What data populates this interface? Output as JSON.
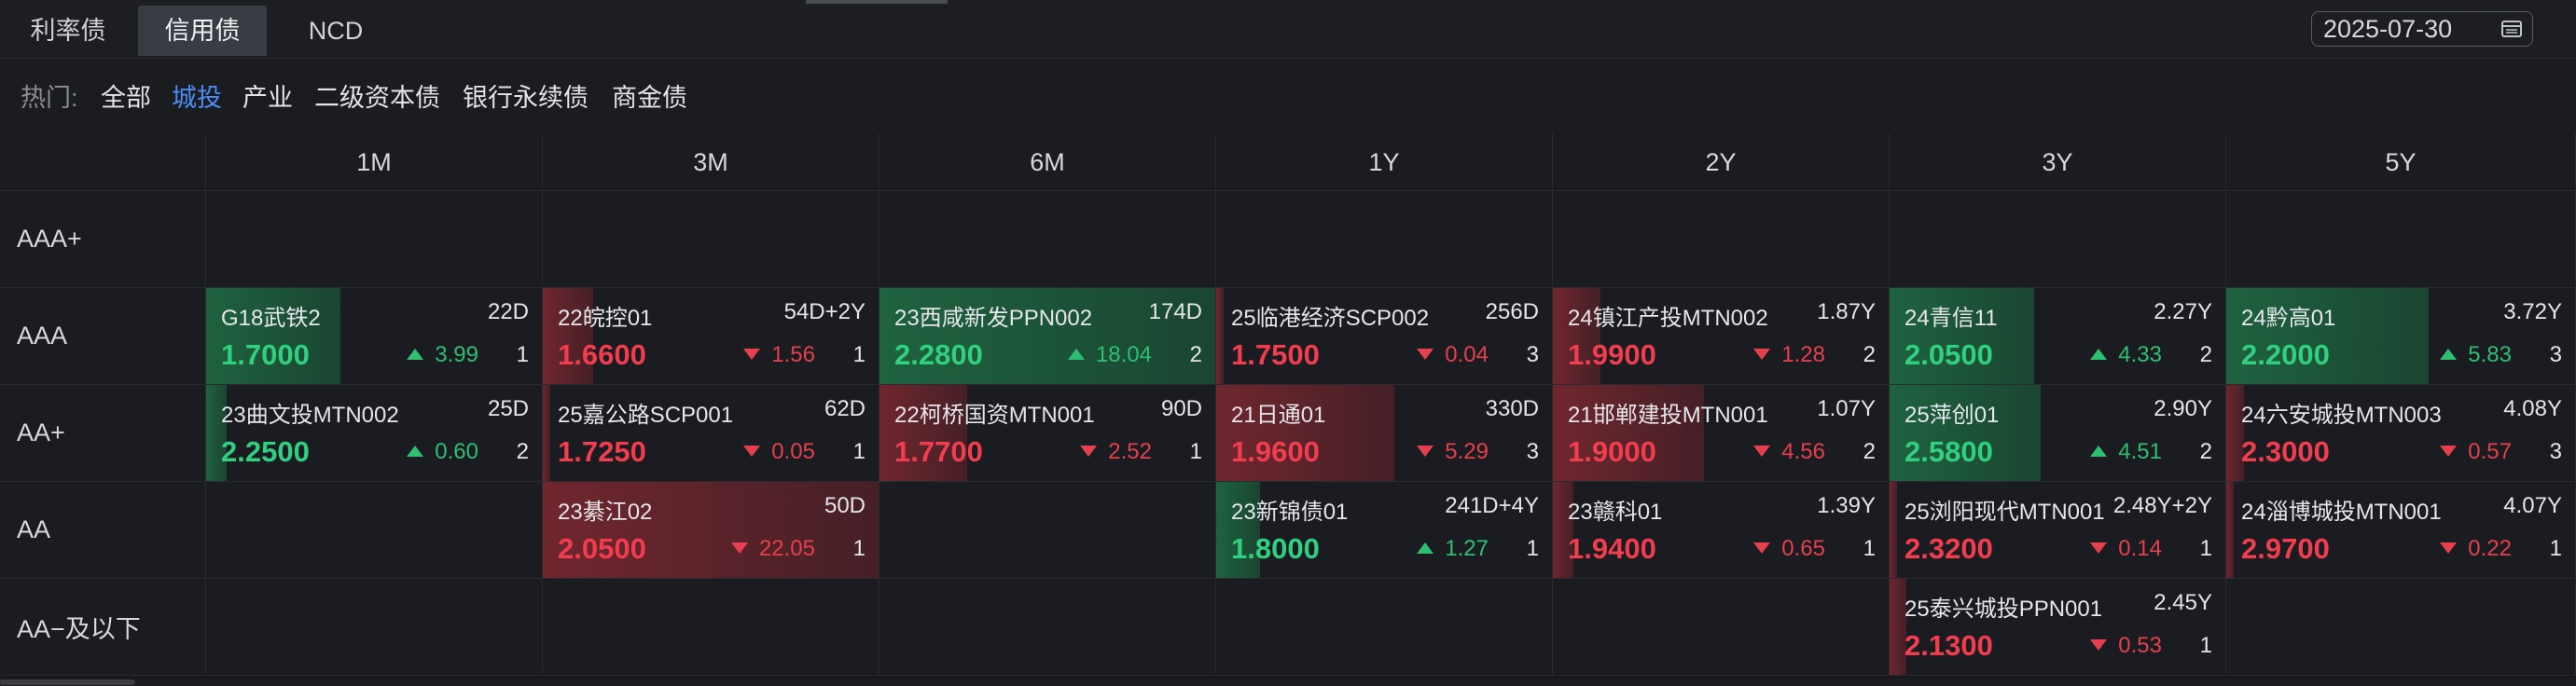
{
  "tabs": [
    {
      "label": "利率债"
    },
    {
      "label": "信用债"
    },
    {
      "label": "NCD"
    }
  ],
  "date": "2025-07-30",
  "hot": {
    "label": "热门:",
    "items": [
      "全部",
      "城投",
      "产业",
      "二级资本债",
      "银行永续债",
      "商金债"
    ],
    "active_index": 1
  },
  "columns": [
    "1M",
    "3M",
    "6M",
    "1Y",
    "2Y",
    "3Y",
    "5Y"
  ],
  "rows": [
    "AAA+",
    "AAA",
    "AA+",
    "AA",
    "AA−及以下"
  ],
  "colors": {
    "up": "#2fd07f",
    "down": "#f13d4e",
    "active": "#4d8cf5"
  },
  "cells": [
    [
      null,
      null,
      null,
      null,
      null,
      null,
      null
    ],
    [
      {
        "name": "G18武铁2",
        "term": "22D",
        "rate": "1.7000",
        "dir": "up",
        "chg": "3.99",
        "count": "1",
        "fill": 0.4
      },
      {
        "name": "22皖控01",
        "term": "54D+2Y",
        "rate": "1.6600",
        "dir": "down",
        "chg": "1.56",
        "count": "1",
        "fill": 0.15
      },
      {
        "name": "23西咸新发PPN002",
        "term": "174D",
        "rate": "2.2800",
        "dir": "up",
        "chg": "18.04",
        "count": "2",
        "fill": 1.0
      },
      {
        "name": "25临港经济SCP002",
        "term": "256D",
        "rate": "1.7500",
        "dir": "down",
        "chg": "0.04",
        "count": "3",
        "fill": 0.02
      },
      {
        "name": "24镇江产投MTN002",
        "term": "1.87Y",
        "rate": "1.9900",
        "dir": "down",
        "chg": "1.28",
        "count": "2",
        "fill": 0.14
      },
      {
        "name": "24青信11",
        "term": "2.27Y",
        "rate": "2.0500",
        "dir": "up",
        "chg": "4.33",
        "count": "2",
        "fill": 0.43
      },
      {
        "name": "24黔高01",
        "term": "3.72Y",
        "rate": "2.2000",
        "dir": "up",
        "chg": "5.83",
        "count": "3",
        "fill": 0.58
      }
    ],
    [
      {
        "name": "23曲文投MTN002",
        "term": "25D",
        "rate": "2.2500",
        "dir": "up",
        "chg": "0.60",
        "count": "2",
        "fill": 0.06
      },
      {
        "name": "25嘉公路SCP001",
        "term": "62D",
        "rate": "1.7250",
        "dir": "down",
        "chg": "0.05",
        "count": "1",
        "fill": 0.02
      },
      {
        "name": "22柯桥国资MTN001",
        "term": "90D",
        "rate": "1.7700",
        "dir": "down",
        "chg": "2.52",
        "count": "1",
        "fill": 0.26
      },
      {
        "name": "21日通01",
        "term": "330D",
        "rate": "1.9600",
        "dir": "down",
        "chg": "5.29",
        "count": "3",
        "fill": 0.53
      },
      {
        "name": "21邯郸建投MTN001",
        "term": "1.07Y",
        "rate": "1.9000",
        "dir": "down",
        "chg": "4.56",
        "count": "2",
        "fill": 0.45
      },
      {
        "name": "25萍创01",
        "term": "2.90Y",
        "rate": "2.5800",
        "dir": "up",
        "chg": "4.51",
        "count": "2",
        "fill": 0.45
      },
      {
        "name": "24六安城投MTN003",
        "term": "4.08Y",
        "rate": "2.3000",
        "dir": "down",
        "chg": "0.57",
        "count": "3",
        "fill": 0.05
      }
    ],
    [
      null,
      {
        "name": "23綦江02",
        "term": "50D",
        "rate": "2.0500",
        "dir": "down",
        "chg": "22.05",
        "count": "1",
        "fill": 1.0
      },
      null,
      {
        "name": "23新锦债01",
        "term": "241D+4Y",
        "rate": "1.8000",
        "dir": "up",
        "chg": "1.27",
        "count": "1",
        "fill": 0.13
      },
      {
        "name": "23赣科01",
        "term": "1.39Y",
        "rate": "1.9400",
        "dir": "down",
        "chg": "0.65",
        "count": "1",
        "fill": 0.06
      },
      {
        "name": "25浏阳现代MTN001",
        "term": "2.48Y+2Y",
        "rate": "2.3200",
        "dir": "down",
        "chg": "0.14",
        "count": "1",
        "fill": 0.02
      },
      {
        "name": "24淄博城投MTN001",
        "term": "4.07Y",
        "rate": "2.9700",
        "dir": "down",
        "chg": "0.22",
        "count": "1",
        "fill": 0.02
      }
    ],
    [
      null,
      null,
      null,
      null,
      null,
      {
        "name": "25泰兴城投PPN001",
        "term": "2.45Y",
        "rate": "2.1300",
        "dir": "down",
        "chg": "0.53",
        "count": "1",
        "fill": 0.05
      },
      null
    ]
  ]
}
